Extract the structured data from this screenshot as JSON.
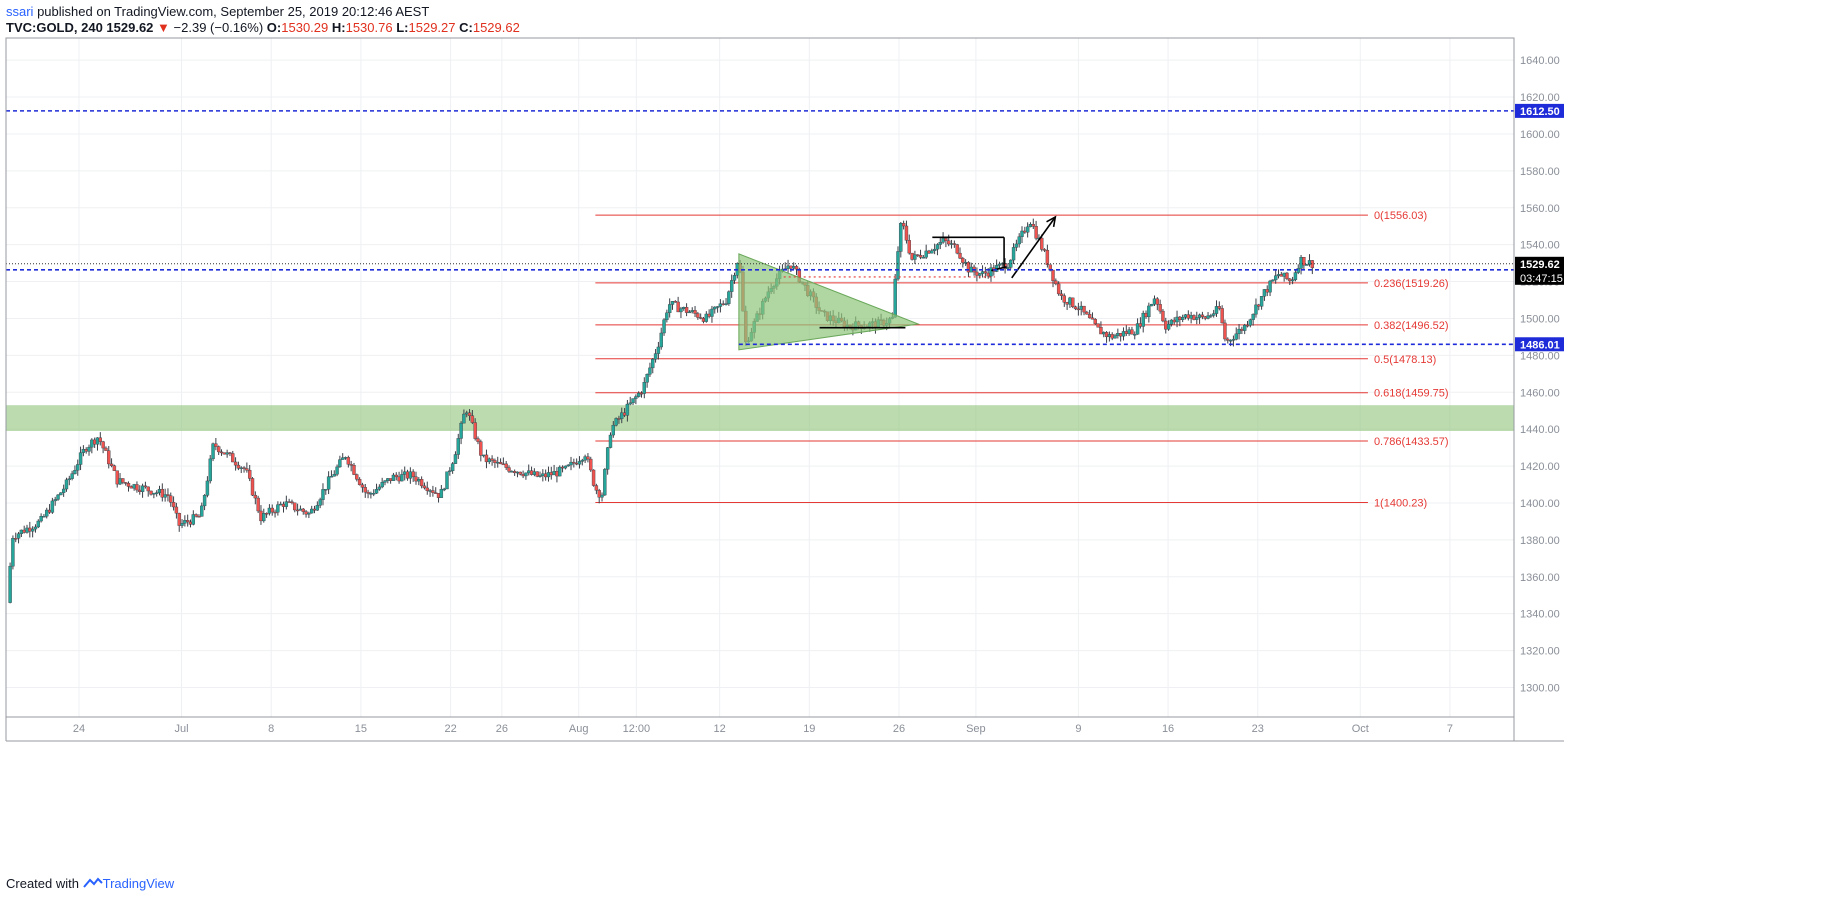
{
  "header": {
    "author": "ssari",
    "published_text": "published on TradingView.com, September 25, 2019 20:12:46 AEST",
    "symbol": "TVC:GOLD, 240",
    "last": "1529.62",
    "change": "−2.39 (−0.16%)",
    "o_label": "O:",
    "o_value": "1530.29",
    "h_label": "H:",
    "h_value": "1530.76",
    "l_label": "L:",
    "l_value": "1529.27",
    "c_label": "C:",
    "c_value": "1529.62"
  },
  "footer": {
    "created_with": "Created with",
    "brand": "TradingView"
  },
  "colors": {
    "up": "#26a69a",
    "down": "#ef5350",
    "fib": "#e53935",
    "blue_line": "#1e2bd8",
    "zone": "#8fc47a",
    "triangle": "#8fc47a",
    "black_label": "#000000"
  },
  "chart_data": {
    "type": "candlestick",
    "title": "",
    "xlabel": "",
    "ylabel": "",
    "ylim": [
      1284,
      1652
    ],
    "y_ticks": [
      "1300.00",
      "1320.00",
      "1340.00",
      "1360.00",
      "1380.00",
      "1400.00",
      "1420.00",
      "1440.00",
      "1460.00",
      "1480.00",
      "1500.00",
      "1520.00",
      "1540.00",
      "1560.00",
      "1580.00",
      "1600.00",
      "1620.00",
      "1640.00"
    ],
    "x_ticks": [
      "24",
      "Jul",
      "8",
      "15",
      "22",
      "26",
      "Aug",
      "12:00",
      "12",
      "19",
      "26",
      "Sep",
      "9",
      "16",
      "23",
      "Oct",
      "7"
    ],
    "x_tick_days": [
      -7,
      1,
      8,
      15,
      22,
      26,
      32,
      36.5,
      43,
      50,
      57,
      63,
      71,
      78,
      85,
      93,
      100
    ],
    "x_range_days": [
      -12.7,
      105
    ],
    "price_anchors": [
      [
        -12.6,
        1346
      ],
      [
        -12.2,
        1382
      ],
      [
        -10,
        1390
      ],
      [
        -8,
        1410
      ],
      [
        -6.5,
        1430
      ],
      [
        -5.5,
        1436
      ],
      [
        -4,
        1412
      ],
      [
        -2,
        1408
      ],
      [
        0,
        1404
      ],
      [
        0.8,
        1388
      ],
      [
        2.5,
        1393
      ],
      [
        3.5,
        1432
      ],
      [
        6,
        1418
      ],
      [
        7.2,
        1392
      ],
      [
        9,
        1400
      ],
      [
        11,
        1394
      ],
      [
        12.5,
        1412
      ],
      [
        13.8,
        1426
      ],
      [
        15.5,
        1404
      ],
      [
        17.5,
        1414
      ],
      [
        19,
        1415
      ],
      [
        21.2,
        1404
      ],
      [
        22.3,
        1426
      ],
      [
        23.2,
        1452
      ],
      [
        24.5,
        1424
      ],
      [
        26,
        1420
      ],
      [
        29,
        1414
      ],
      [
        31,
        1418
      ],
      [
        32.5,
        1427
      ],
      [
        33.3,
        1408
      ],
      [
        33.8,
        1404
      ],
      [
        34.5,
        1440
      ],
      [
        37,
        1462
      ],
      [
        38.2,
        1486
      ],
      [
        39,
        1508
      ],
      [
        42,
        1500
      ],
      [
        43.5,
        1510
      ],
      [
        44.5,
        1534
      ],
      [
        45,
        1486
      ],
      [
        47,
        1518
      ],
      [
        48.5,
        1530
      ],
      [
        51,
        1502
      ],
      [
        53,
        1496
      ],
      [
        55.5,
        1497
      ],
      [
        56.5,
        1500
      ],
      [
        56.8,
        1530
      ],
      [
        57.2,
        1553
      ],
      [
        58,
        1532
      ],
      [
        60.5,
        1542
      ],
      [
        61.5,
        1538
      ],
      [
        62.5,
        1526
      ],
      [
        63.5,
        1524
      ],
      [
        65.5,
        1530
      ],
      [
        66.8,
        1548
      ],
      [
        67.2,
        1554
      ],
      [
        68.3,
        1536
      ],
      [
        69.6,
        1512
      ],
      [
        71,
        1506
      ],
      [
        72.5,
        1494
      ],
      [
        73.5,
        1490
      ],
      [
        75.5,
        1494
      ],
      [
        77,
        1512
      ],
      [
        77.8,
        1496
      ],
      [
        79.5,
        1502
      ],
      [
        80.8,
        1500
      ],
      [
        82,
        1505
      ],
      [
        82.5,
        1487
      ],
      [
        84,
        1496
      ],
      [
        85.5,
        1514
      ],
      [
        86.6,
        1524
      ],
      [
        87.6,
        1520
      ],
      [
        88.3,
        1532
      ],
      [
        88.8,
        1530.5
      ],
      [
        89.3,
        1529.62
      ]
    ],
    "fib_levels": [
      {
        "label": "0(1556.03)",
        "value": 1556.03
      },
      {
        "label": "0.236(1519.26)",
        "value": 1519.26
      },
      {
        "label": "0.382(1496.52)",
        "value": 1496.52
      },
      {
        "label": "0.5(1478.13)",
        "value": 1478.13
      },
      {
        "label": "0.618(1459.75)",
        "value": 1459.75
      },
      {
        "label": "0.786(1433.57)",
        "value": 1433.57
      },
      {
        "label": "1(1400.23)",
        "value": 1400.23
      }
    ],
    "fib_x_range_days": [
      33.3,
      93.6
    ],
    "horizontal_lines": [
      {
        "label": "1612.50",
        "value": 1612.5
      },
      {
        "label": "1526.38",
        "value": 1526.38
      },
      {
        "label": "1486.01",
        "value": 1486.01,
        "from_day": 44.5
      }
    ],
    "last_price": {
      "label": "1529.62",
      "value": 1529.62,
      "countdown": "03:47:15"
    },
    "support_zone": [
      1439,
      1453
    ],
    "triangle": [
      [
        44.5,
        1535
      ],
      [
        58.5,
        1497
      ],
      [
        44.5,
        1483
      ]
    ],
    "flag_lines": [
      [
        [
          50.8,
          1495
        ],
        [
          57.5,
          1495
        ]
      ],
      [
        [
          59.6,
          1544
        ],
        [
          65.2,
          1544
        ]
      ],
      [
        [
          65.2,
          1544
        ],
        [
          65.2,
          1528
        ]
      ],
      [
        [
          64.2,
          1526
        ],
        [
          65.4,
          1528
        ]
      ]
    ],
    "dotted_resistance": [
      [
        48,
        1522.5
      ],
      [
        64.5,
        1522.5
      ]
    ],
    "arrow": [
      [
        65.8,
        1522
      ],
      [
        69.2,
        1555
      ]
    ]
  }
}
